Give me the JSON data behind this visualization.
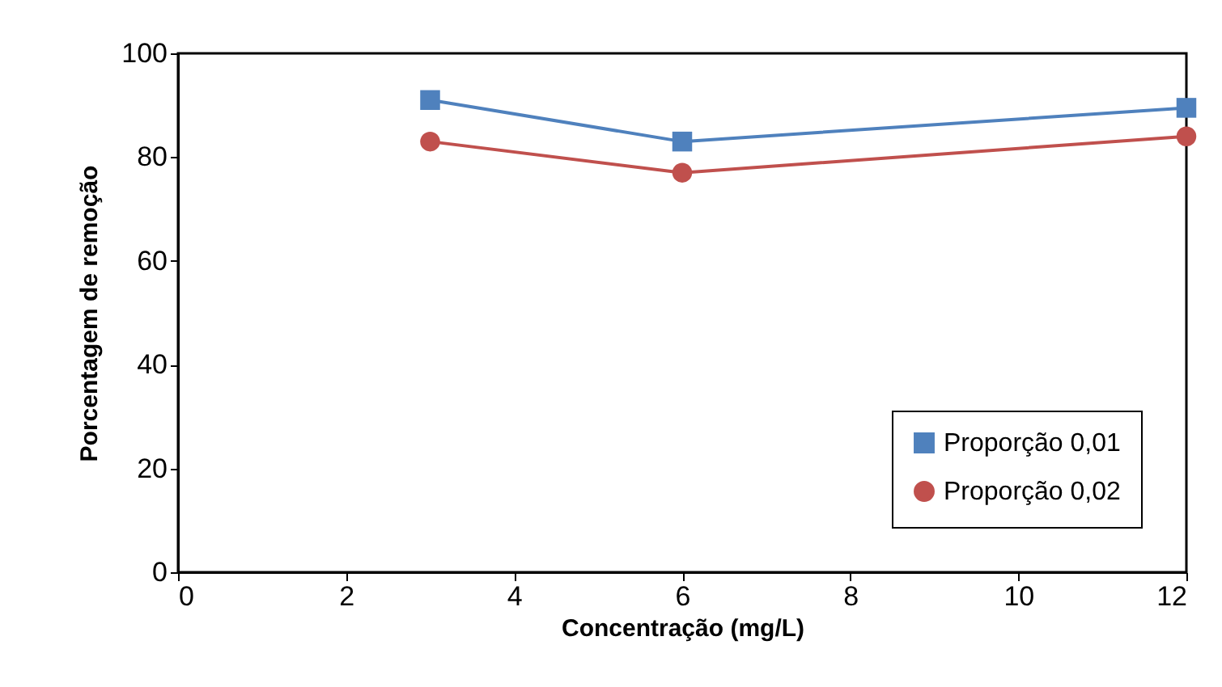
{
  "chart_data": {
    "type": "line",
    "xlabel": "Concentração (mg/L)",
    "ylabel": "Porcentagem de remoção",
    "x": [
      3,
      6,
      12
    ],
    "series": [
      {
        "name": "Proporção 0,01",
        "color": "#4f81bd",
        "marker": "square",
        "values": [
          91,
          83,
          89.5
        ]
      },
      {
        "name": "Proporção 0,02",
        "color": "#c0504d",
        "marker": "circle",
        "values": [
          83,
          77,
          84
        ]
      }
    ],
    "xlim": [
      0,
      12
    ],
    "xticks": [
      0,
      2,
      4,
      6,
      8,
      10,
      12
    ],
    "ylim": [
      0,
      100
    ],
    "yticks": [
      0,
      20,
      40,
      60,
      80,
      100
    ],
    "grid": false,
    "legend": "bottom right",
    "line_style": "solid"
  }
}
